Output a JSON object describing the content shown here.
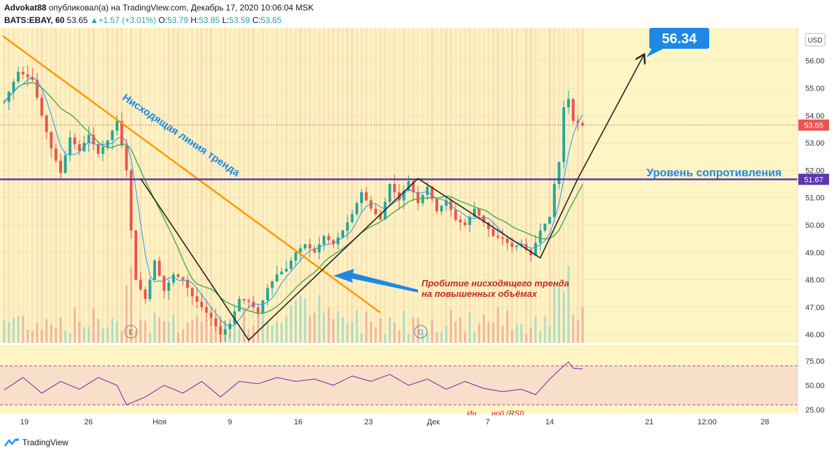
{
  "header": {
    "author": "Advokat88",
    "published": "опубликовал(а) на TradingView.com, Декабрь 17, 2020 10:06:04 MSK",
    "symbol": "BATS:EBAY, 60",
    "last": "53.65",
    "change": "+1.57 (+3.01%)",
    "open_label": "O:",
    "open": "53.79",
    "high_label": "H:",
    "high": "53.85",
    "low_label": "L:",
    "low": "53.59",
    "close_label": "C:",
    "close": "53.65"
  },
  "chart_data": {
    "type": "candlestick",
    "currency": "USD",
    "ylim": [
      45.7,
      57.2
    ],
    "y_ticks": [
      "56.00",
      "55.00",
      "54.00",
      "53.00",
      "52.00",
      "51.00",
      "50.00",
      "49.00",
      "48.00",
      "47.00",
      "46.00"
    ],
    "x_ticks": [
      "19",
      "26",
      "Ноя",
      "9",
      "16",
      "23",
      "Дек",
      "7",
      "14",
      "21",
      "12:00",
      "28"
    ],
    "last_price_label": "53.65",
    "resistance_price_label": "51.67",
    "target_label": "56.34",
    "event_markers": [
      "E",
      "D"
    ],
    "rsi_ticks": [
      "75.00",
      "50.00",
      "25.00"
    ],
    "annotations": {
      "trendline": "Нисходящая линия тренда",
      "resistance": "Уровень сопротивления",
      "breakout_1": "Пробитие нисходящего тренда",
      "breakout_2": "на повышенных объёмах",
      "rsi_partial": "Ин...   ...ной (RSI)"
    },
    "price_path": [
      [
        0,
        54.5
      ],
      [
        3,
        55.6
      ],
      [
        6,
        55.3
      ],
      [
        8,
        54.0
      ],
      [
        10,
        52.8
      ],
      [
        12,
        51.9
      ],
      [
        14,
        53.2
      ],
      [
        16,
        52.7
      ],
      [
        18,
        53.3
      ],
      [
        20,
        52.6
      ],
      [
        22,
        53.1
      ],
      [
        24,
        53.8
      ],
      [
        26,
        52.0
      ],
      [
        27,
        49.8
      ],
      [
        28,
        48.0
      ],
      [
        30,
        47.3
      ],
      [
        32,
        48.7
      ],
      [
        34,
        47.6
      ],
      [
        36,
        48.2
      ],
      [
        38,
        48.0
      ],
      [
        40,
        47.4
      ],
      [
        42,
        47.0
      ],
      [
        44,
        46.6
      ],
      [
        46,
        46.0
      ],
      [
        48,
        46.4
      ],
      [
        50,
        47.3
      ],
      [
        52,
        47.2
      ],
      [
        54,
        46.8
      ],
      [
        56,
        47.7
      ],
      [
        58,
        48.2
      ],
      [
        60,
        48.4
      ],
      [
        62,
        49.0
      ],
      [
        64,
        49.3
      ],
      [
        66,
        49.0
      ],
      [
        68,
        49.6
      ],
      [
        70,
        49.3
      ],
      [
        72,
        49.8
      ],
      [
        74,
        50.4
      ],
      [
        76,
        51.2
      ],
      [
        78,
        50.6
      ],
      [
        80,
        50.2
      ],
      [
        82,
        51.5
      ],
      [
        84,
        50.9
      ],
      [
        86,
        51.6
      ],
      [
        88,
        50.8
      ],
      [
        90,
        51.4
      ],
      [
        92,
        50.5
      ],
      [
        94,
        50.9
      ],
      [
        96,
        50.2
      ],
      [
        98,
        50.0
      ],
      [
        100,
        50.6
      ],
      [
        102,
        50.1
      ],
      [
        104,
        49.6
      ],
      [
        106,
        49.5
      ],
      [
        108,
        49.2
      ],
      [
        110,
        49.3
      ],
      [
        112,
        48.9
      ],
      [
        114,
        49.8
      ],
      [
        116,
        50.3
      ],
      [
        117,
        51.5
      ],
      [
        118,
        52.3
      ],
      [
        119,
        54.3
      ],
      [
        120,
        54.6
      ],
      [
        121,
        53.8
      ],
      [
        123,
        53.65
      ]
    ],
    "rsi_path": [
      [
        0,
        44
      ],
      [
        4,
        60
      ],
      [
        8,
        40
      ],
      [
        12,
        55
      ],
      [
        16,
        45
      ],
      [
        20,
        60
      ],
      [
        24,
        50
      ],
      [
        26,
        25
      ],
      [
        30,
        35
      ],
      [
        34,
        50
      ],
      [
        38,
        40
      ],
      [
        42,
        55
      ],
      [
        46,
        35
      ],
      [
        50,
        55
      ],
      [
        54,
        52
      ],
      [
        58,
        60
      ],
      [
        62,
        55
      ],
      [
        66,
        58
      ],
      [
        70,
        50
      ],
      [
        74,
        62
      ],
      [
        78,
        55
      ],
      [
        82,
        64
      ],
      [
        86,
        50
      ],
      [
        90,
        58
      ],
      [
        94,
        45
      ],
      [
        98,
        55
      ],
      [
        102,
        46
      ],
      [
        106,
        42
      ],
      [
        110,
        45
      ],
      [
        113,
        38
      ],
      [
        116,
        58
      ],
      [
        119,
        75
      ],
      [
        120,
        80
      ],
      [
        121,
        72
      ],
      [
        123,
        71
      ]
    ]
  },
  "footer": {
    "brand": "TradingView"
  },
  "colors": {
    "bg": "#fdf5c4",
    "trend": "#ff9800",
    "resistance": "#5e35b1",
    "ema": "#4caf50",
    "sma": "#2196f3",
    "rsi": "#7b1fa2",
    "up": "#26a69a",
    "down": "#ef5350"
  }
}
